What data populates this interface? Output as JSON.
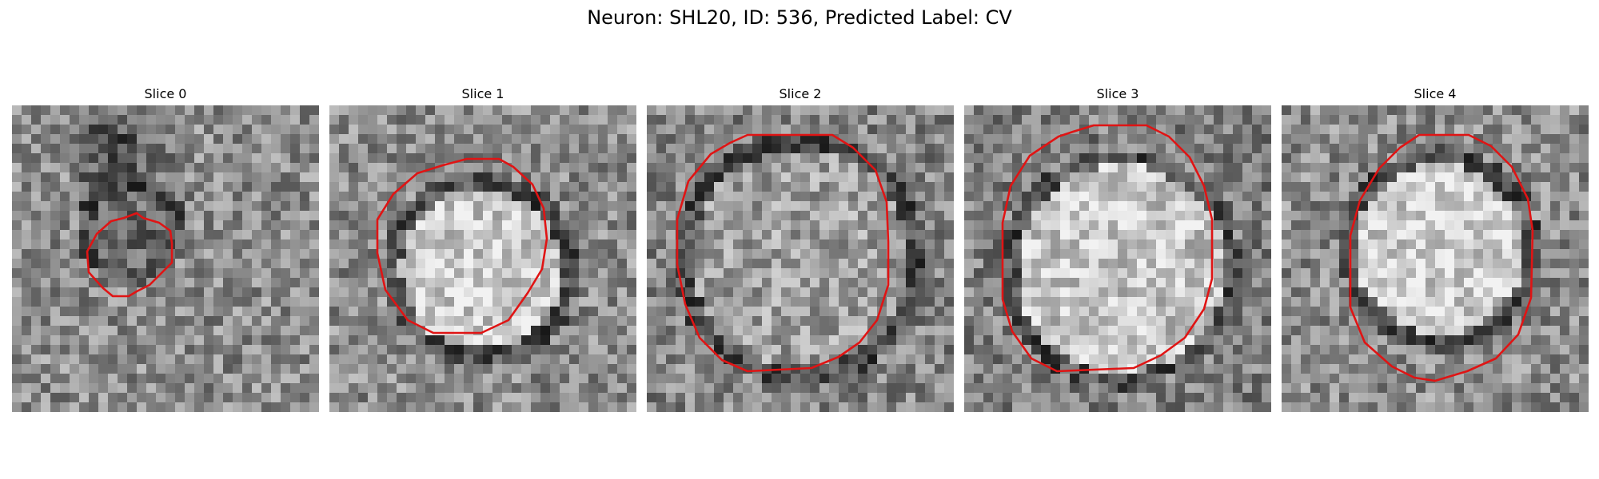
{
  "figure": {
    "title": "Neuron: SHL20, ID: 536, Predicted Label: CV"
  },
  "colors": {
    "contour": "#e01414",
    "colormap": "gray"
  },
  "panels": [
    {
      "title": "Slice 0"
    },
    {
      "title": "Slice 1"
    },
    {
      "title": "Slice 2"
    },
    {
      "title": "Slice 3"
    },
    {
      "title": "Slice 4"
    }
  ]
}
